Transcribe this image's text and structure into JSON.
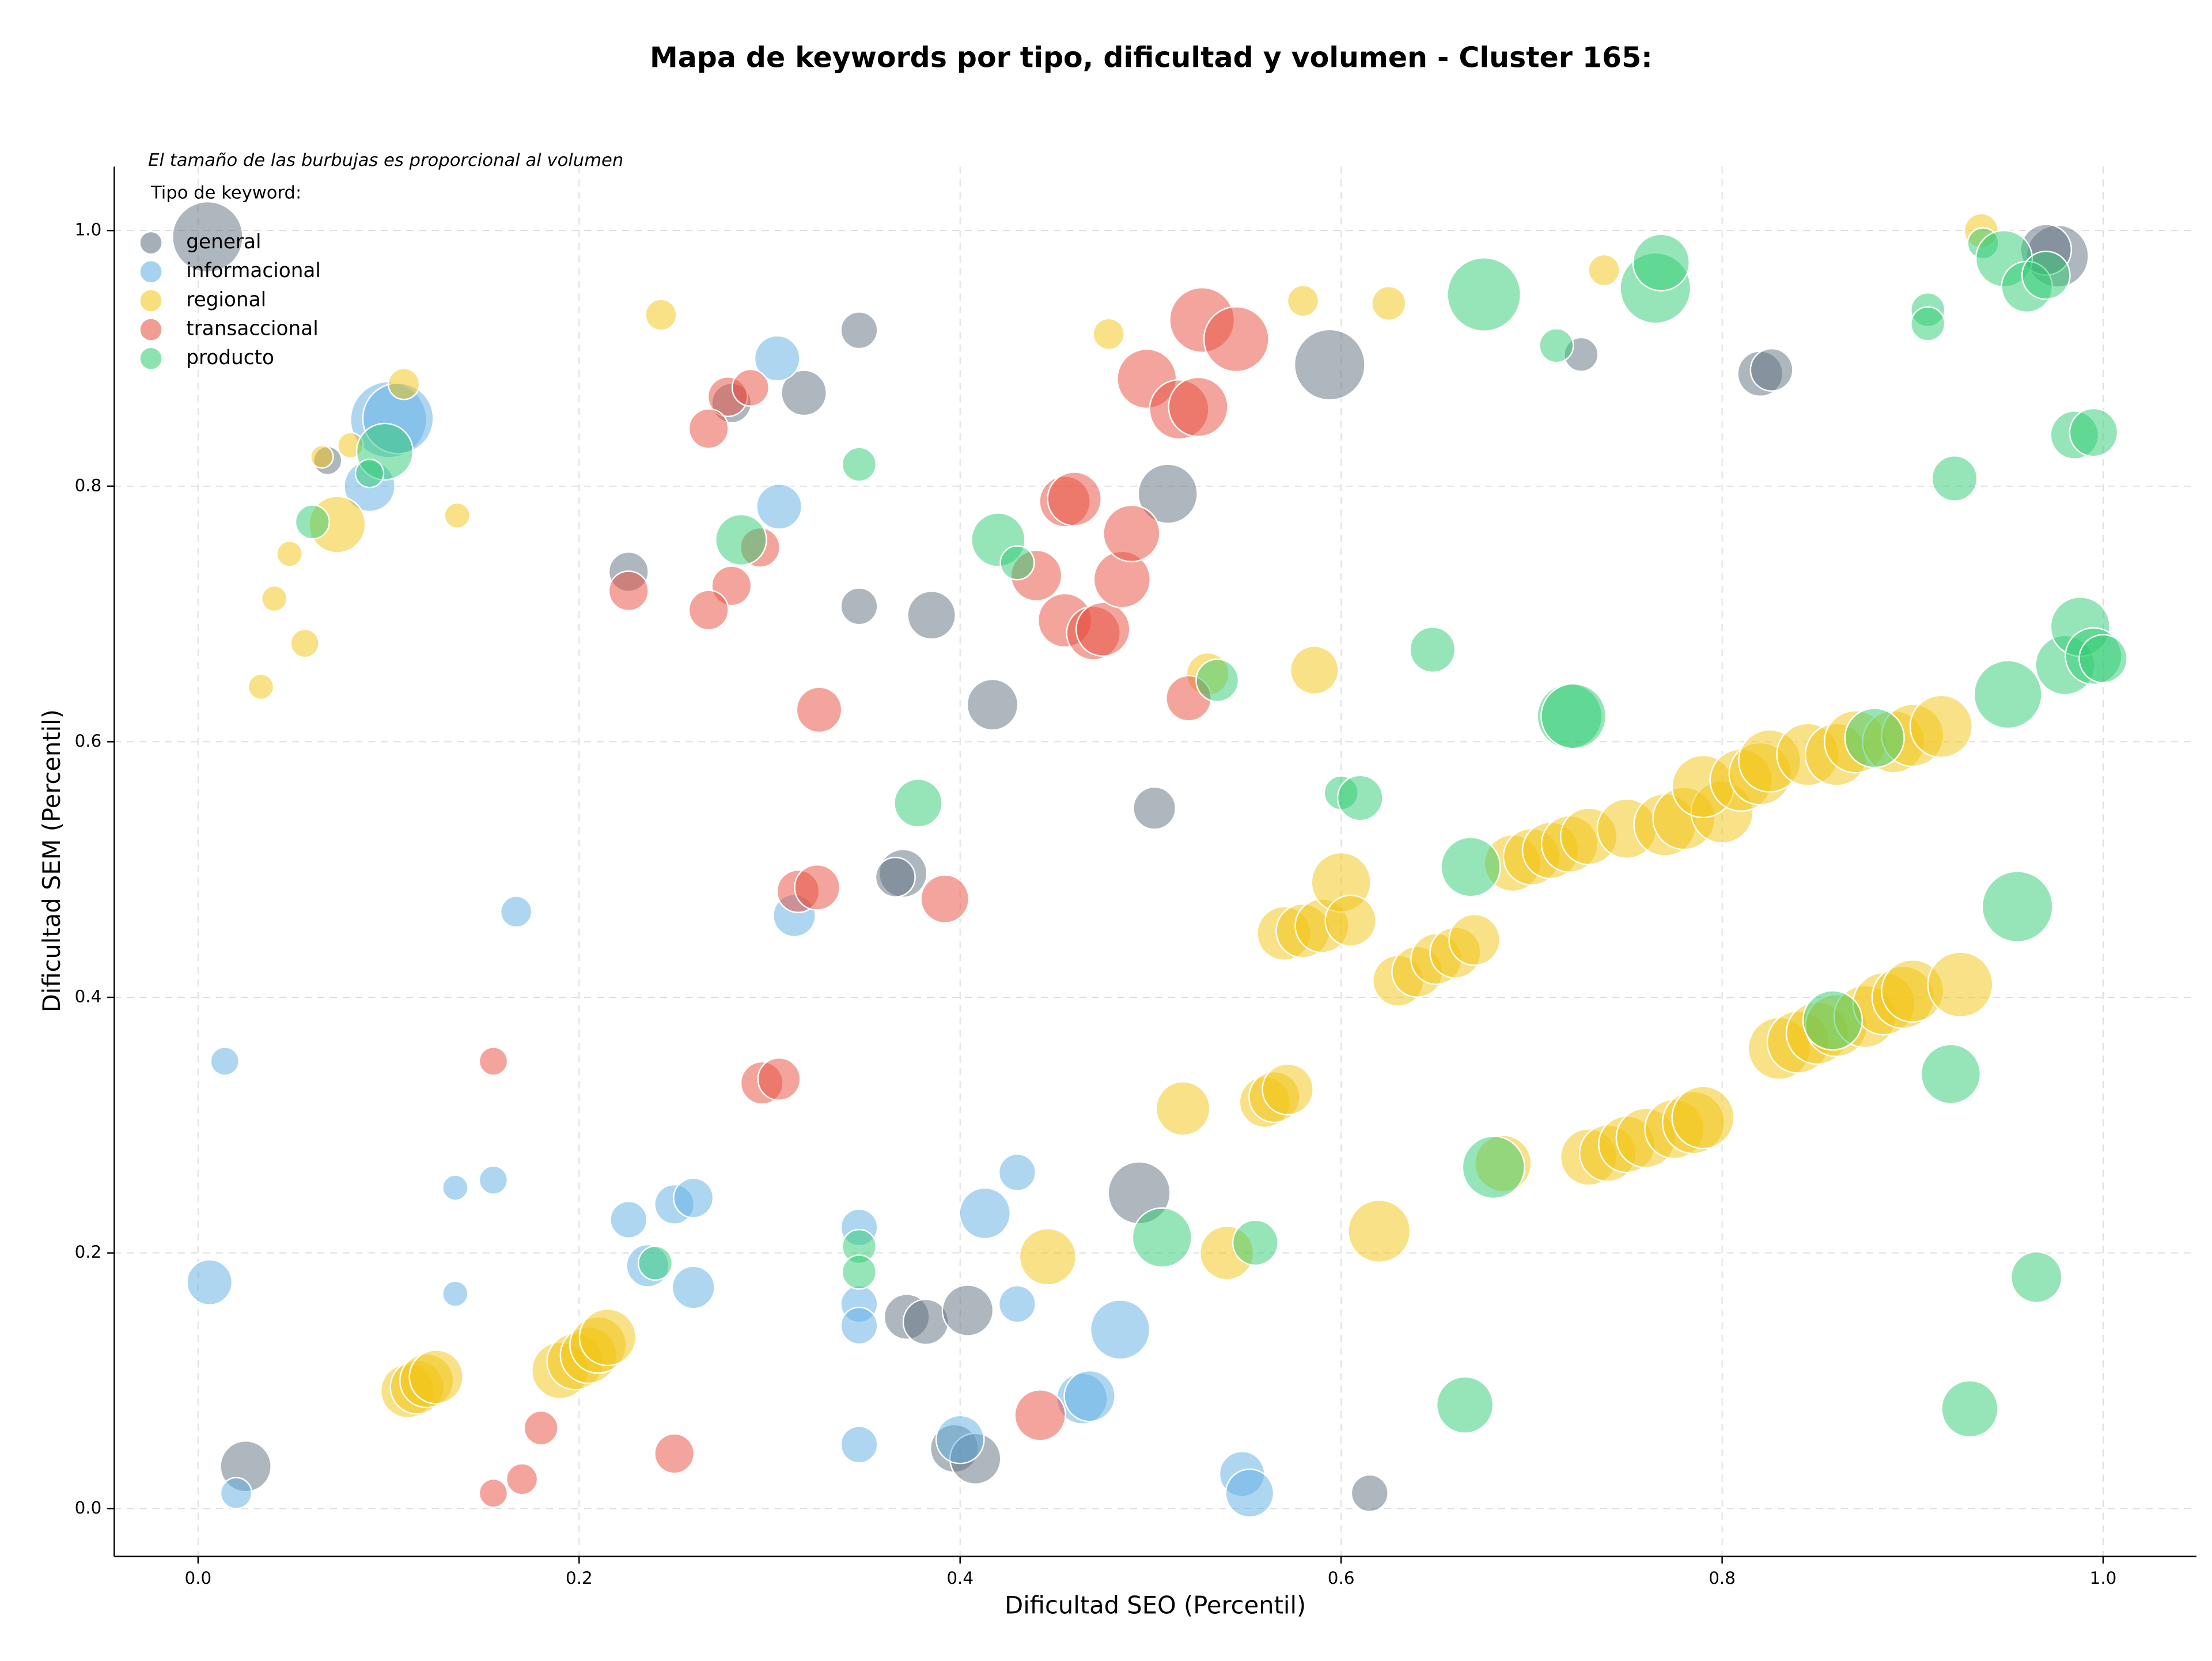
{
  "chart_data": {
    "type": "scatter",
    "title": "Mapa de keywords por tipo, dificultad y volumen - Cluster 165:",
    "note": "El tamaño de las burbujas es proporcional al volumen",
    "legend_title": "Tipo de keyword:",
    "legend": "upper left",
    "grid": true,
    "x_label": "Dificultad SEO (Percentil)",
    "y_label": "Dificultad SEM (Percentil)",
    "xlim": [
      -0.044,
      1.049
    ],
    "ylim": [
      -0.0375,
      1.05
    ],
    "xticks": [
      {
        "value": 0,
        "label": "0.0"
      },
      0.2,
      0.4,
      0.6,
      0.8,
      {
        "value": 1,
        "label": "1.0"
      }
    ],
    "yticks": [
      {
        "value": 0,
        "label": "0.0"
      },
      0.2,
      0.4,
      0.6,
      0.8,
      {
        "value": 1,
        "label": "1.0"
      }
    ],
    "series": [
      {
        "name": "general",
        "color": "#5d6d7e",
        "x": [
          0.005,
          0.068,
          0.28,
          0.318,
          0.347,
          0.226,
          0.347,
          0.385,
          0.417,
          0.509,
          0.502,
          0.37,
          0.366,
          0.594,
          0.726,
          0.82,
          0.826,
          0.976,
          0.97,
          0.025,
          0.372,
          0.382,
          0.404,
          0.397,
          0.408,
          0.494,
          0.615
        ],
        "values": [
          0.995,
          0.82,
          0.865,
          0.873,
          0.922,
          0.733,
          0.706,
          0.699,
          0.629,
          0.794,
          0.548,
          0.497,
          0.494,
          0.895,
          0.903,
          0.888,
          0.891,
          0.98,
          0.985,
          0.033,
          0.15,
          0.146,
          0.155,
          0.047,
          0.039,
          0.247,
          0.012
        ],
        "sizes": [
          625,
          100,
          196,
          256,
          169,
          196,
          169,
          289,
          324,
          441,
          225,
          289,
          196,
          625,
          144,
          256,
          225,
          484,
          324,
          324,
          256,
          256,
          324,
          289,
          324,
          484,
          169
        ]
      },
      {
        "name": "informacional",
        "color": "#5dade2",
        "x": [
          0.1,
          0.105,
          0.09,
          0.304,
          0.305,
          0.167,
          0.313,
          0.014,
          0.135,
          0.155,
          0.135,
          0.006,
          0.02,
          0.226,
          0.236,
          0.25,
          0.26,
          0.26,
          0.347,
          0.347,
          0.347,
          0.347,
          0.413,
          0.43,
          0.43,
          0.4,
          0.464,
          0.468,
          0.484,
          0.548,
          0.552
        ],
        "values": [
          0.852,
          0.853,
          0.8,
          0.9,
          0.784,
          0.467,
          0.464,
          0.35,
          0.251,
          0.257,
          0.168,
          0.177,
          0.012,
          0.226,
          0.19,
          0.238,
          0.243,
          0.173,
          0.22,
          0.16,
          0.143,
          0.05,
          0.231,
          0.263,
          0.16,
          0.054,
          0.086,
          0.088,
          0.14,
          0.027,
          0.012
        ],
        "sizes": [
          729,
          625,
          324,
          256,
          256,
          121,
          225,
          100,
          81,
          100,
          81,
          256,
          121,
          169,
          225,
          196,
          196,
          225,
          169,
          169,
          169,
          169,
          324,
          169,
          169,
          289,
          324,
          324,
          441,
          256,
          289
        ]
      },
      {
        "name": "regional",
        "color": "#f1c40f",
        "x": [
          0.108,
          0.08,
          0.065,
          0.073,
          0.136,
          0.048,
          0.04,
          0.056,
          0.033,
          0.243,
          0.478,
          0.58,
          0.625,
          0.738,
          0.936,
          0.53,
          0.586,
          0.11,
          0.115,
          0.12,
          0.125,
          0.19,
          0.198,
          0.205,
          0.21,
          0.215,
          0.446,
          0.517,
          0.54,
          0.56,
          0.565,
          0.572,
          0.57,
          0.58,
          0.59,
          0.6,
          0.605,
          0.62,
          0.63,
          0.64,
          0.65,
          0.66,
          0.67,
          0.685,
          0.69,
          0.7,
          0.71,
          0.72,
          0.73,
          0.75,
          0.77,
          0.78,
          0.8,
          0.79,
          0.81,
          0.82,
          0.825,
          0.845,
          0.86,
          0.87,
          0.89,
          0.9,
          0.915,
          0.73,
          0.74,
          0.75,
          0.76,
          0.775,
          0.785,
          0.79,
          0.83,
          0.84,
          0.85,
          0.86,
          0.875,
          0.885,
          0.895,
          0.9,
          0.925
        ],
        "values": [
          0.88,
          0.832,
          0.823,
          0.77,
          0.777,
          0.747,
          0.712,
          0.677,
          0.643,
          0.934,
          0.919,
          0.945,
          0.943,
          0.969,
          1.0,
          0.653,
          0.656,
          0.092,
          0.095,
          0.1,
          0.103,
          0.108,
          0.115,
          0.12,
          0.128,
          0.134,
          0.197,
          0.313,
          0.2,
          0.318,
          0.322,
          0.328,
          0.45,
          0.452,
          0.456,
          0.49,
          0.46,
          0.217,
          0.413,
          0.42,
          0.43,
          0.435,
          0.445,
          0.27,
          0.505,
          0.51,
          0.515,
          0.52,
          0.526,
          0.532,
          0.535,
          0.54,
          0.545,
          0.565,
          0.57,
          0.575,
          0.585,
          0.59,
          0.59,
          0.6,
          0.6,
          0.605,
          0.612,
          0.275,
          0.278,
          0.285,
          0.29,
          0.297,
          0.302,
          0.306,
          0.36,
          0.365,
          0.372,
          0.378,
          0.385,
          0.395,
          0.4,
          0.405,
          0.41
        ],
        "sizes": [
          121,
          81,
          64,
          400,
          81,
          81,
          81,
          100,
          81,
          121,
          121,
          121,
          144,
          121,
          144,
          225,
          289,
          361,
          361,
          361,
          361,
          400,
          400,
          400,
          400,
          400,
          400,
          361,
          361,
          324,
          324,
          324,
          361,
          361,
          361,
          441,
          324,
          484,
          324,
          324,
          324,
          324,
          324,
          400,
          400,
          400,
          400,
          400,
          400,
          441,
          484,
          484,
          484,
          484,
          484,
          484,
          484,
          484,
          484,
          484,
          484,
          484,
          484,
          400,
          400,
          400,
          441,
          441,
          484,
          484,
          484,
          484,
          484,
          484,
          484,
          484,
          484,
          484,
          529
        ]
      },
      {
        "name": "transaccional",
        "color": "#e74c3c",
        "x": [
          0.278,
          0.29,
          0.268,
          0.28,
          0.226,
          0.268,
          0.295,
          0.326,
          0.315,
          0.325,
          0.392,
          0.155,
          0.296,
          0.305,
          0.18,
          0.155,
          0.17,
          0.25,
          0.442,
          0.44,
          0.455,
          0.46,
          0.455,
          0.47,
          0.475,
          0.485,
          0.49,
          0.498,
          0.515,
          0.525,
          0.527,
          0.545,
          0.52
        ],
        "values": [
          0.87,
          0.877,
          0.845,
          0.722,
          0.718,
          0.703,
          0.752,
          0.625,
          0.483,
          0.486,
          0.477,
          0.35,
          0.333,
          0.336,
          0.063,
          0.012,
          0.023,
          0.043,
          0.073,
          0.73,
          0.788,
          0.79,
          0.695,
          0.685,
          0.688,
          0.727,
          0.763,
          0.884,
          0.86,
          0.862,
          0.93,
          0.915,
          0.634
        ],
        "sizes": [
          196,
          169,
          196,
          196,
          196,
          196,
          196,
          256,
          225,
          256,
          289,
          100,
          225,
          225,
          144,
          100,
          121,
          196,
          324,
          324,
          324,
          361,
          361,
          361,
          361,
          400,
          400,
          441,
          441,
          441,
          529,
          529,
          256
        ]
      },
      {
        "name": "producto",
        "color": "#2ecc71",
        "x": [
          0.098,
          0.06,
          0.09,
          0.347,
          0.285,
          0.42,
          0.43,
          0.378,
          0.24,
          0.347,
          0.347,
          0.506,
          0.555,
          0.535,
          0.6,
          0.61,
          0.648,
          0.668,
          0.675,
          0.68,
          0.665,
          0.713,
          0.72,
          0.722,
          0.765,
          0.768,
          0.88,
          0.858,
          0.92,
          0.922,
          0.908,
          0.908,
          0.937,
          0.948,
          0.96,
          0.97,
          0.95,
          0.955,
          0.965,
          0.93,
          0.98,
          0.988,
          0.995,
          1.0,
          0.985,
          0.995
        ],
        "values": [
          0.827,
          0.772,
          0.81,
          0.817,
          0.758,
          0.758,
          0.74,
          0.552,
          0.192,
          0.205,
          0.185,
          0.212,
          0.208,
          0.648,
          0.56,
          0.556,
          0.672,
          0.502,
          0.95,
          0.267,
          0.081,
          0.91,
          0.62,
          0.62,
          0.955,
          0.975,
          0.603,
          0.382,
          0.34,
          0.806,
          0.938,
          0.927,
          0.99,
          0.978,
          0.956,
          0.965,
          0.637,
          0.471,
          0.181,
          0.078,
          0.66,
          0.69,
          0.667,
          0.665,
          0.84,
          0.842
        ],
        "sizes": [
          400,
          144,
          100,
          144,
          324,
          361,
          144,
          289,
          144,
          144,
          144,
          441,
          256,
          225,
          144,
          256,
          256,
          441,
          676,
          484,
          400,
          144,
          529,
          529,
          625,
          400,
          441,
          441,
          441,
          256,
          144,
          144,
          121,
          400,
          324,
          289,
          576,
          625,
          324,
          400,
          441,
          441,
          400,
          289,
          289,
          289
        ]
      }
    ]
  }
}
